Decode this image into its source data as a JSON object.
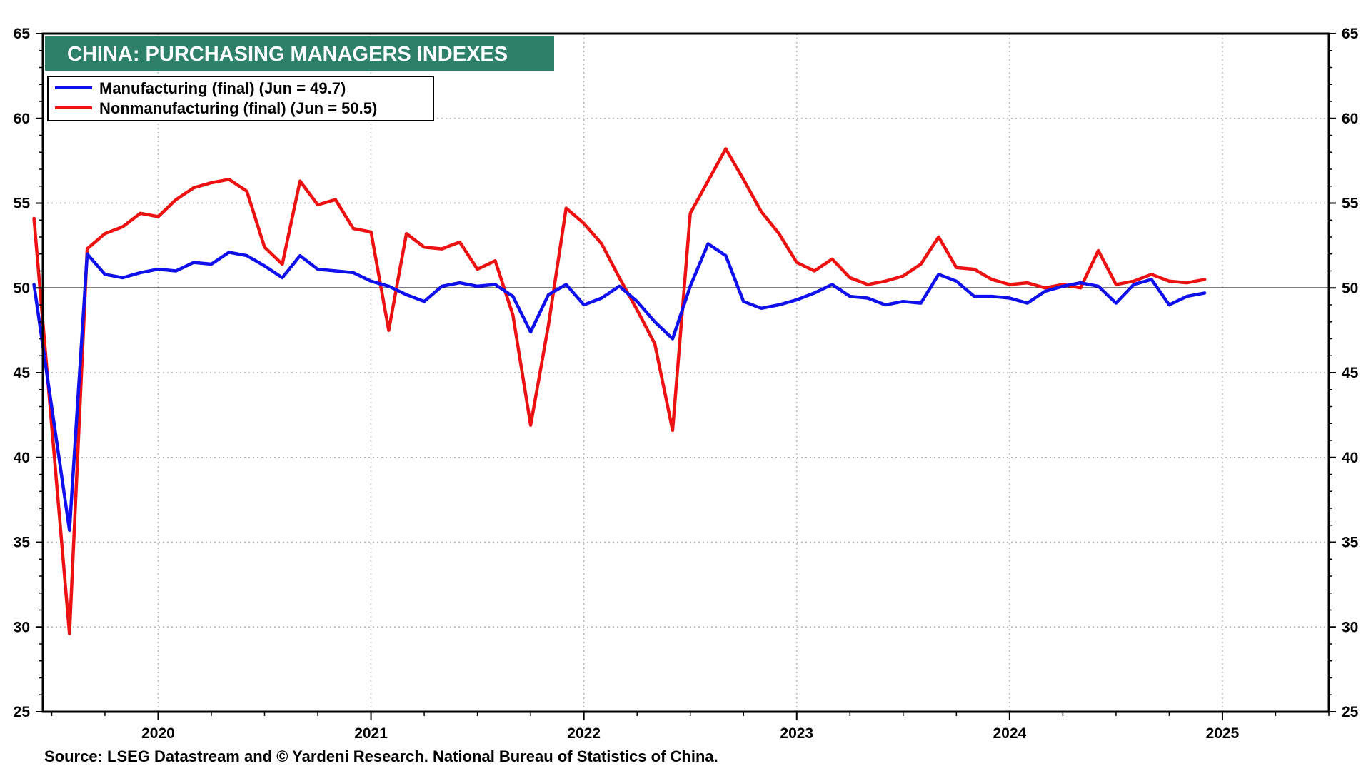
{
  "chart_data": {
    "type": "line",
    "title": "CHINA: PURCHASING MANAGERS INDEXES",
    "source": "Source: LSEG Datastream and © Yardeni Research. National Bureau of Statistics of China.",
    "ylim": [
      25,
      65
    ],
    "y_ticks": [
      25,
      30,
      35,
      40,
      45,
      50,
      55,
      60,
      65
    ],
    "reference_line": 50,
    "x_tick_labels": [
      "2020",
      "2021",
      "2022",
      "2023",
      "2024",
      "2025"
    ],
    "grid": true,
    "legend_position": "top-left",
    "colors": {
      "title_bg": "#2e8068",
      "manufacturing": "#1010ee",
      "nonmanufacturing": "#ee1111"
    },
    "series": [
      {
        "name": "Manufacturing (final) (Jun = 49.7)",
        "color": "#1010ee",
        "dates": [
          "2019-12",
          "2020-02",
          "2020-03",
          "2020-04",
          "2020-05",
          "2020-06",
          "2020-07",
          "2020-08",
          "2020-09",
          "2020-10",
          "2020-11",
          "2020-12",
          "2021-01",
          "2021-02",
          "2021-03",
          "2021-04",
          "2021-05",
          "2021-06",
          "2021-07",
          "2021-08",
          "2021-09",
          "2021-10",
          "2021-11",
          "2021-12",
          "2022-01",
          "2022-02",
          "2022-03",
          "2022-04",
          "2022-05",
          "2022-06",
          "2022-07",
          "2022-08",
          "2022-09",
          "2022-10",
          "2022-11",
          "2022-12",
          "2023-01",
          "2023-02",
          "2023-03",
          "2023-04",
          "2023-05",
          "2023-06",
          "2023-07",
          "2023-08",
          "2023-09",
          "2023-10",
          "2023-11",
          "2023-12",
          "2024-01",
          "2024-02",
          "2024-03",
          "2024-04",
          "2024-05",
          "2024-06",
          "2024-07",
          "2024-08",
          "2024-09",
          "2024-10",
          "2024-11",
          "2024-12",
          "2025-01",
          "2025-02",
          "2025-03",
          "2025-04",
          "2025-05",
          "2025-06"
        ],
        "values": [
          50.2,
          35.7,
          52.0,
          50.8,
          50.6,
          50.9,
          51.1,
          51.0,
          51.5,
          51.4,
          52.1,
          51.9,
          51.3,
          50.6,
          51.9,
          51.1,
          51.0,
          50.9,
          50.4,
          50.1,
          49.6,
          49.2,
          50.1,
          50.3,
          50.1,
          50.2,
          49.5,
          47.4,
          49.6,
          50.2,
          49.0,
          49.4,
          50.1,
          49.2,
          48.0,
          47.0,
          50.1,
          52.6,
          51.9,
          49.2,
          48.8,
          49.0,
          49.3,
          49.7,
          50.2,
          49.5,
          49.4,
          49.0,
          49.2,
          49.1,
          50.8,
          50.4,
          49.5,
          49.5,
          49.4,
          49.1,
          49.8,
          50.1,
          50.3,
          50.1,
          49.1,
          50.2,
          50.5,
          49.0,
          49.5,
          49.7
        ]
      },
      {
        "name": "Nonmanufacturing (final) (Jun = 50.5)",
        "color": "#ee1111",
        "dates": [
          "2019-12",
          "2020-02",
          "2020-03",
          "2020-04",
          "2020-05",
          "2020-06",
          "2020-07",
          "2020-08",
          "2020-09",
          "2020-10",
          "2020-11",
          "2020-12",
          "2021-01",
          "2021-02",
          "2021-03",
          "2021-04",
          "2021-05",
          "2021-06",
          "2021-07",
          "2021-08",
          "2021-09",
          "2021-10",
          "2021-11",
          "2021-12",
          "2022-01",
          "2022-02",
          "2022-03",
          "2022-04",
          "2022-05",
          "2022-06",
          "2022-07",
          "2022-08",
          "2022-09",
          "2022-10",
          "2022-11",
          "2022-12",
          "2023-01",
          "2023-02",
          "2023-03",
          "2023-04",
          "2023-05",
          "2023-06",
          "2023-07",
          "2023-08",
          "2023-09",
          "2023-10",
          "2023-11",
          "2023-12",
          "2024-01",
          "2024-02",
          "2024-03",
          "2024-04",
          "2024-05",
          "2024-06",
          "2024-07",
          "2024-08",
          "2024-09",
          "2024-10",
          "2024-11",
          "2024-12",
          "2025-01",
          "2025-02",
          "2025-03",
          "2025-04",
          "2025-05",
          "2025-06"
        ],
        "values": [
          54.1,
          29.6,
          52.3,
          53.2,
          53.6,
          54.4,
          54.2,
          55.2,
          55.9,
          56.2,
          56.4,
          55.7,
          52.4,
          51.4,
          56.3,
          54.9,
          55.2,
          53.5,
          53.3,
          47.5,
          53.2,
          52.4,
          52.3,
          52.7,
          51.1,
          51.6,
          48.4,
          41.9,
          47.8,
          54.7,
          53.8,
          52.6,
          50.6,
          48.7,
          46.7,
          41.6,
          54.4,
          56.3,
          58.2,
          56.4,
          54.5,
          53.2,
          51.5,
          51.0,
          51.7,
          50.6,
          50.2,
          50.4,
          50.7,
          51.4,
          53.0,
          51.2,
          51.1,
          50.5,
          50.2,
          50.3,
          50.0,
          50.2,
          50.0,
          52.2,
          50.2,
          50.4,
          50.8,
          50.4,
          50.3,
          50.5
        ]
      }
    ]
  }
}
